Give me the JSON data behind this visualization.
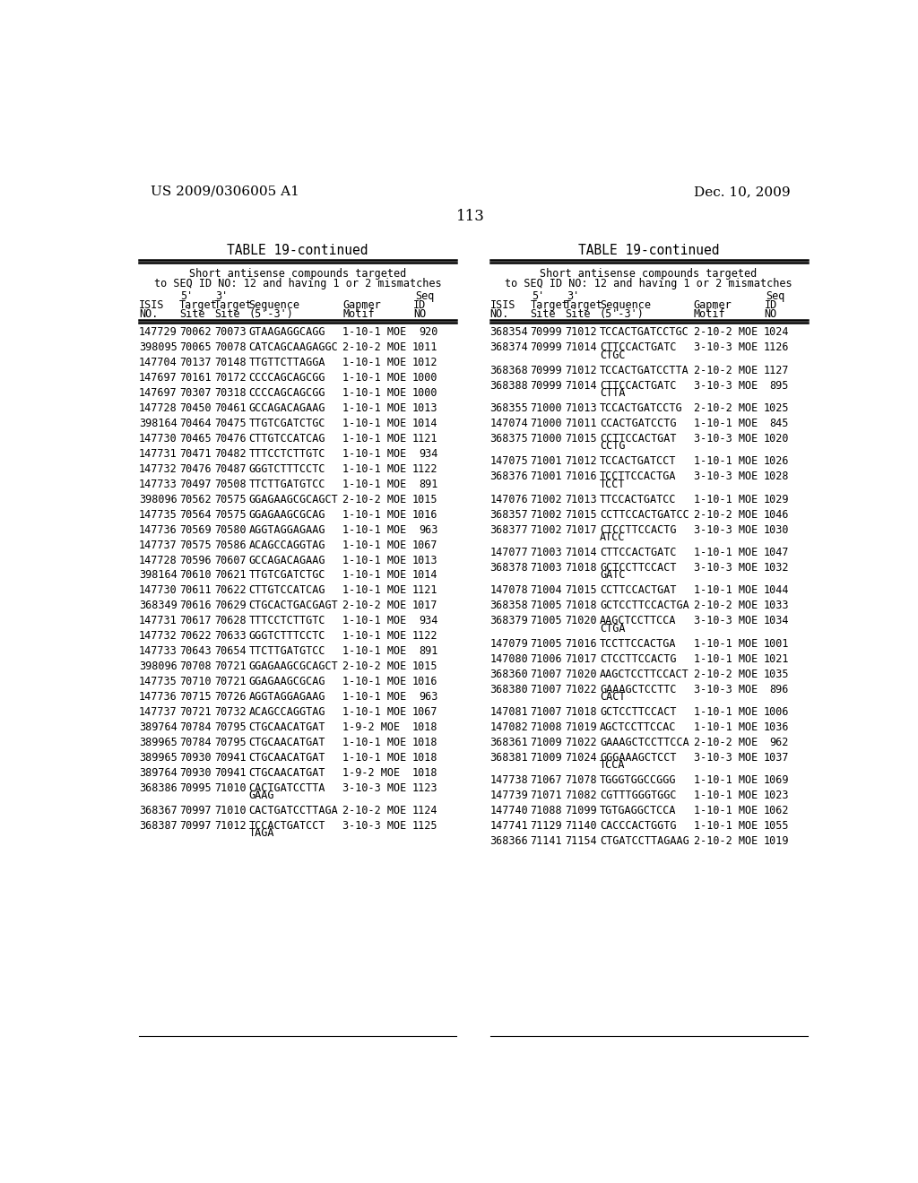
{
  "header_left": "US 2009/0306005 A1",
  "header_right": "Dec. 10, 2009",
  "page_number": "113",
  "table_title": "TABLE 19-continued",
  "table_subtitle1": "Short antisense compounds targeted",
  "table_subtitle2": "to SEQ ID NO: 12 and having 1 or 2 mismatches",
  "left_data": [
    [
      "147729",
      "70062",
      "70073",
      "GTAAGAGGCAGG",
      "1-10-1 MOE",
      "920"
    ],
    [
      "398095",
      "70065",
      "70078",
      "CATCAGCAAGAGGC",
      "2-10-2 MOE",
      "1011"
    ],
    [
      "147704",
      "70137",
      "70148",
      "TTGTTCTTAGGA",
      "1-10-1 MOE",
      "1012"
    ],
    [
      "147697",
      "70161",
      "70172",
      "CCCCAGCAGCGG",
      "1-10-1 MOE",
      "1000"
    ],
    [
      "147697",
      "70307",
      "70318",
      "CCCCAGCAGCGG",
      "1-10-1 MOE",
      "1000"
    ],
    [
      "147728",
      "70450",
      "70461",
      "GCCAGACAGAAG",
      "1-10-1 MOE",
      "1013"
    ],
    [
      "398164",
      "70464",
      "70475",
      "TTGTCGATCTGC",
      "1-10-1 MOE",
      "1014"
    ],
    [
      "147730",
      "70465",
      "70476",
      "CTTGTCCATCAG",
      "1-10-1 MOE",
      "1121"
    ],
    [
      "147731",
      "70471",
      "70482",
      "TTTCCTCTTGTC",
      "1-10-1 MOE",
      "934"
    ],
    [
      "147732",
      "70476",
      "70487",
      "GGGTCTTTCCTC",
      "1-10-1 MOE",
      "1122"
    ],
    [
      "147733",
      "70497",
      "70508",
      "TTCTTGATGTCC",
      "1-10-1 MOE",
      "891"
    ],
    [
      "398096",
      "70562",
      "70575",
      "GGAGAAGCGCAGCT",
      "2-10-2 MOE",
      "1015"
    ],
    [
      "147735",
      "70564",
      "70575",
      "GGAGAAGCGCAG",
      "1-10-1 MOE",
      "1016"
    ],
    [
      "147736",
      "70569",
      "70580",
      "AGGTAGGAGAAG",
      "1-10-1 MOE",
      "963"
    ],
    [
      "147737",
      "70575",
      "70586",
      "ACAGCCAGGTAG",
      "1-10-1 MOE",
      "1067"
    ],
    [
      "147728",
      "70596",
      "70607",
      "GCCAGACAGAAG",
      "1-10-1 MOE",
      "1013"
    ],
    [
      "398164",
      "70610",
      "70621",
      "TTGTCGATCTGC",
      "1-10-1 MOE",
      "1014"
    ],
    [
      "147730",
      "70611",
      "70622",
      "CTTGTCCATCAG",
      "1-10-1 MOE",
      "1121"
    ],
    [
      "368349",
      "70616",
      "70629",
      "CTGCACTGACGAGT",
      "2-10-2 MOE",
      "1017"
    ],
    [
      "147731",
      "70617",
      "70628",
      "TTTCCTCTTGTC",
      "1-10-1 MOE",
      "934"
    ],
    [
      "147732",
      "70622",
      "70633",
      "GGGTCTTTCCTC",
      "1-10-1 MOE",
      "1122"
    ],
    [
      "147733",
      "70643",
      "70654",
      "TTCTTGATGTCC",
      "1-10-1 MOE",
      "891"
    ],
    [
      "398096",
      "70708",
      "70721",
      "GGAGAAGCGCAGCT",
      "2-10-2 MOE",
      "1015"
    ],
    [
      "147735",
      "70710",
      "70721",
      "GGAGAAGCGCAG",
      "1-10-1 MOE",
      "1016"
    ],
    [
      "147736",
      "70715",
      "70726",
      "AGGTAGGAGAAG",
      "1-10-1 MOE",
      "963"
    ],
    [
      "147737",
      "70721",
      "70732",
      "ACAGCCAGGTAG",
      "1-10-1 MOE",
      "1067"
    ],
    [
      "389764",
      "70784",
      "70795",
      "CTGCAACATGAT",
      "1-9-2 MOE",
      "1018"
    ],
    [
      "389965",
      "70784",
      "70795",
      "CTGCAACATGAT",
      "1-10-1 MOE",
      "1018"
    ],
    [
      "389965",
      "70930",
      "70941",
      "CTGCAACATGAT",
      "1-10-1 MOE",
      "1018"
    ],
    [
      "389764",
      "70930",
      "70941",
      "CTGCAACATGAT",
      "1-9-2 MOE",
      "1018"
    ],
    [
      "368386",
      "70995",
      "71010",
      "CACTGATCCTTA\nGAAG",
      "3-10-3 MOE",
      "1123"
    ],
    [
      "368367",
      "70997",
      "71010",
      "CACTGATCCTTAGА",
      "2-10-2 MOE",
      "1124"
    ],
    [
      "368387",
      "70997",
      "71012",
      "TCCACTGATCCT\nTAGA",
      "3-10-3 MOE",
      "1125"
    ]
  ],
  "right_data": [
    [
      "368354",
      "70999",
      "71012",
      "TCCACTGATCCTGC",
      "2-10-2 MOE",
      "1024"
    ],
    [
      "368374",
      "70999",
      "71014",
      "CTTCCACTGATC\nCTGC",
      "3-10-3 MOE",
      "1126"
    ],
    [
      "368368",
      "70999",
      "71012",
      "TCCACTGATCCTTA",
      "2-10-2 MOE",
      "1127"
    ],
    [
      "368388",
      "70999",
      "71014",
      "CTTCCACTGATC\nCTTA",
      "3-10-3 MOE",
      "895"
    ],
    [
      "368355",
      "71000",
      "71013",
      "TCCACTGATCCTG",
      "2-10-2 MOE",
      "1025"
    ],
    [
      "147074",
      "71000",
      "71011",
      "CCACTGATCCTG",
      "1-10-1 MOE",
      "845"
    ],
    [
      "368375",
      "71000",
      "71015",
      "CCTTCCACTGAT\nCCTG",
      "3-10-3 MOE",
      "1020"
    ],
    [
      "147075",
      "71001",
      "71012",
      "TCCACTGATCCT",
      "1-10-1 MOE",
      "1026"
    ],
    [
      "368376",
      "71001",
      "71016",
      "TCCTTCCACTGA\nTCCT",
      "3-10-3 MOE",
      "1028"
    ],
    [
      "147076",
      "71002",
      "71013",
      "TTCCACTGATCC",
      "1-10-1 MOE",
      "1029"
    ],
    [
      "368357",
      "71002",
      "71015",
      "CCTTCCACTGATCC",
      "2-10-2 MOE",
      "1046"
    ],
    [
      "368377",
      "71002",
      "71017",
      "CTCCTTCCACTG\nATCC",
      "3-10-3 MOE",
      "1030"
    ],
    [
      "147077",
      "71003",
      "71014",
      "CTTCCACTGATC",
      "1-10-1 MOE",
      "1047"
    ],
    [
      "368378",
      "71003",
      "71018",
      "GCTCCTTCCACT\nGATC",
      "3-10-3 MOE",
      "1032"
    ],
    [
      "147078",
      "71004",
      "71015",
      "CCTTCCACTGAT",
      "1-10-1 MOE",
      "1044"
    ],
    [
      "368358",
      "71005",
      "71018",
      "GCTCCTTCCACTGA",
      "2-10-2 MOE",
      "1033"
    ],
    [
      "368379",
      "71005",
      "71020",
      "AAGCTCCTTCCA\nCTGA",
      "3-10-3 MOE",
      "1034"
    ],
    [
      "147079",
      "71005",
      "71016",
      "TCCTTCCACTGA",
      "1-10-1 MOE",
      "1001"
    ],
    [
      "147080",
      "71006",
      "71017",
      "CTCCTTCCACTG",
      "1-10-1 MOE",
      "1021"
    ],
    [
      "368360",
      "71007",
      "71020",
      "AAGCTCCTTCCACT",
      "2-10-2 MOE",
      "1035"
    ],
    [
      "368380",
      "71007",
      "71022",
      "GAAAGCTCCTTC\nCACT",
      "3-10-3 MOE",
      "896"
    ],
    [
      "147081",
      "71007",
      "71018",
      "GCTCCTTCCACT",
      "1-10-1 MOE",
      "1006"
    ],
    [
      "147082",
      "71008",
      "71019",
      "AGCTCCTTCCAC",
      "1-10-1 MOE",
      "1036"
    ],
    [
      "368361",
      "71009",
      "71022",
      "GAAAGCTCCTTCCA",
      "2-10-2 MOE",
      "962"
    ],
    [
      "368381",
      "71009",
      "71024",
      "GGGAAAGCTCCT\nTCCA",
      "3-10-3 MOE",
      "1037"
    ],
    [
      "147738",
      "71067",
      "71078",
      "TGGGTGGCCGGG",
      "1-10-1 MOE",
      "1069"
    ],
    [
      "147739",
      "71071",
      "71082",
      "CGTTTGGGTGGC",
      "1-10-1 MOE",
      "1023"
    ],
    [
      "147740",
      "71088",
      "71099",
      "TGTGAGGCTCCA",
      "1-10-1 MOE",
      "1062"
    ],
    [
      "147741",
      "71129",
      "71140",
      "CACCCACTGGTG",
      "1-10-1 MOE",
      "1055"
    ],
    [
      "368366",
      "71141",
      "71154",
      "CTGATCCTTAGAAG",
      "2-10-2 MOE",
      "1019"
    ]
  ],
  "bg_color": "#ffffff",
  "text_color": "#000000"
}
